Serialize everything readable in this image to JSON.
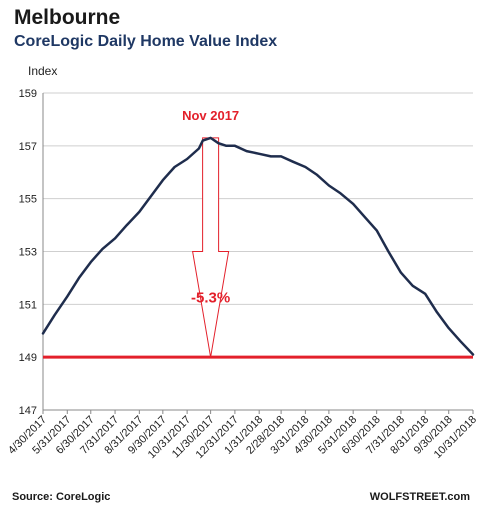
{
  "header": {
    "title": "Melbourne",
    "subtitle": "CoreLogic Daily Home Value Index"
  },
  "footer": {
    "source": "Source: CoreLogic",
    "brand": "WOLFSTREET.com"
  },
  "chart_data": {
    "type": "line",
    "title": "Melbourne",
    "subtitle": "CoreLogic Daily Home Value Index",
    "ylabel": "Index",
    "xlabel": "",
    "ylim": [
      147,
      159
    ],
    "yticks": [
      147,
      149,
      151,
      153,
      155,
      157,
      159
    ],
    "grid": true,
    "x_ticks": [
      "4/30/2017",
      "5/31/2017",
      "6/30/2017",
      "7/31/2017",
      "8/31/2017",
      "9/30/2017",
      "10/31/2017",
      "11/30/2017",
      "12/31/2017",
      "1/31/2018",
      "2/28/2018",
      "3/31/2018",
      "4/30/2018",
      "5/31/2018",
      "6/30/2018",
      "7/31/2018",
      "8/31/2018",
      "9/30/2018",
      "10/31/2018"
    ],
    "series": [
      {
        "color": "#1f2d4d",
        "x": [
          "4/30/2017",
          "5/15/2017",
          "5/31/2017",
          "6/15/2017",
          "6/30/2017",
          "7/15/2017",
          "7/31/2017",
          "8/15/2017",
          "8/31/2017",
          "9/15/2017",
          "9/30/2017",
          "10/15/2017",
          "10/31/2017",
          "11/15/2017",
          "11/20/2017",
          "11/30/2017",
          "12/10/2017",
          "12/20/2017",
          "12/31/2017",
          "1/15/2018",
          "1/31/2018",
          "2/15/2018",
          "2/28/2018",
          "3/15/2018",
          "3/31/2018",
          "4/15/2018",
          "4/30/2018",
          "5/15/2018",
          "5/31/2018",
          "6/15/2018",
          "6/30/2018",
          "7/15/2018",
          "7/31/2018",
          "8/15/2018",
          "8/31/2018",
          "9/15/2018",
          "9/30/2018",
          "10/15/2018",
          "10/31/2018"
        ],
        "values": [
          149.9,
          150.6,
          151.3,
          152.0,
          152.6,
          153.1,
          153.5,
          154.0,
          154.5,
          155.1,
          155.7,
          156.2,
          156.5,
          156.9,
          157.2,
          157.3,
          157.1,
          157.0,
          157.0,
          156.8,
          156.7,
          156.6,
          156.6,
          156.4,
          156.2,
          155.9,
          155.5,
          155.2,
          154.8,
          154.3,
          153.8,
          153.0,
          152.2,
          151.7,
          151.4,
          150.7,
          150.1,
          149.6,
          149.1
        ]
      }
    ],
    "reference_line": {
      "value": 149,
      "color": "#e3202b"
    },
    "annotations": {
      "peak_label": "Nov 2017",
      "change_label": "-5.3%",
      "color": "#e3202b"
    }
  }
}
